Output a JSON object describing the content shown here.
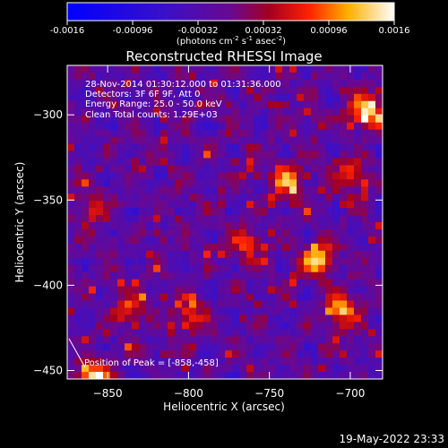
{
  "chart_data": {
    "type": "heatmap",
    "title": "Reconstructed RHESSI Image",
    "xlabel": "Heliocentric X (arcsec)",
    "ylabel": "Heliocentric Y (arcsec)",
    "xlim": [
      -875,
      -680
    ],
    "ylim": [
      -455,
      -271
    ],
    "x_ticks": [
      -850,
      -800,
      -750,
      -700
    ],
    "y_ticks": [
      -450,
      -400,
      -350,
      -300
    ],
    "colorbar": {
      "range": [
        -0.0016,
        0.0016
      ],
      "ticks": [
        "-0.0016",
        "-0.00096",
        "-0.00032",
        "0.00032",
        "0.00096",
        "0.0016"
      ],
      "unit_label": "(photons cm",
      "unit_sup1": "-2",
      "unit_mid": " s",
      "unit_sup2": "-1",
      "unit_mid2": " asec",
      "unit_sup3": "-2",
      "unit_end": ")",
      "colormap": "blue-purple-red-yellow-white"
    },
    "info": [
      "28-Nov-2014 01:30:12.000 to 01:31:36.000",
      "Detectors: 3F 6F 9F, Att 0",
      "Energy Range: 25.0 - 50.0 keV",
      "Clean     Total counts: 1.29E+03"
    ],
    "peak_label": "Position of Peak = [-858,-458]",
    "peak": [
      -858,
      -458
    ],
    "hot_spots": [
      {
        "x": -858,
        "y": -456,
        "level": 1.0
      },
      {
        "x": -690,
        "y": -299,
        "level": 0.85
      },
      {
        "x": -739,
        "y": -339,
        "level": 0.6
      },
      {
        "x": -720,
        "y": -385,
        "level": 0.7
      },
      {
        "x": -705,
        "y": -415,
        "level": 0.65
      },
      {
        "x": -836,
        "y": -414,
        "level": 0.5
      },
      {
        "x": -800,
        "y": -418,
        "level": 0.45
      },
      {
        "x": -765,
        "y": -375,
        "level": 0.5
      },
      {
        "x": -700,
        "y": -336,
        "level": 0.45
      },
      {
        "x": -860,
        "y": -356,
        "level": 0.4
      }
    ]
  },
  "footer": {
    "timestamp": "19-May-2022 23:33"
  }
}
